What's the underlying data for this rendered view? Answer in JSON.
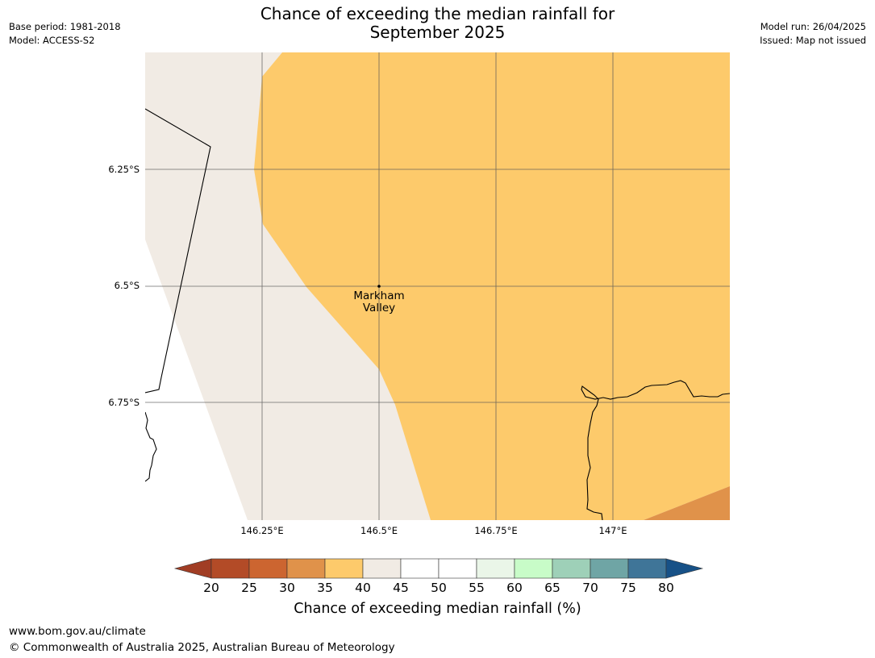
{
  "header": {
    "title_line1": "Chance of exceeding the median rainfall for",
    "title_line2": "September 2025",
    "base_period": "Base period: 1981-2018",
    "model": "Model: ACCESS-S2",
    "model_run": "Model run: 26/04/2025",
    "issued": "Issued: Map not issued"
  },
  "map": {
    "lat_labels": [
      "6.25°S",
      "6.5°S",
      "6.75°S"
    ],
    "lon_labels": [
      "146.25°E",
      "146.5°E",
      "146.75°E",
      "147°E"
    ],
    "place": {
      "line1": "Markham",
      "line2": "Valley"
    },
    "colors": {
      "land_40_45": "#f1ebe4",
      "band_35_40": "#fdca6b",
      "band_30_35": "#e0924a",
      "gridline": "#555555",
      "coastline": "#000000"
    }
  },
  "colorbar": {
    "ticks": [
      "20",
      "25",
      "30",
      "35",
      "40",
      "45",
      "50",
      "55",
      "60",
      "65",
      "70",
      "75",
      "80"
    ],
    "colors": [
      "#a13d24",
      "#b34b27",
      "#cc6530",
      "#e0924a",
      "#fdca6b",
      "#f1ebe4",
      "#ffffff",
      "#ffffff",
      "#eaf6e8",
      "#c8fcc8",
      "#9ed0b8",
      "#6fa5a5",
      "#3f7598",
      "#175187"
    ],
    "label": "Chance of exceeding median rainfall (%)"
  },
  "footer": {
    "url": "www.bom.gov.au/climate",
    "copyright": "© Commonwealth of Australia 2025, Australian Bureau of Meteorology"
  }
}
